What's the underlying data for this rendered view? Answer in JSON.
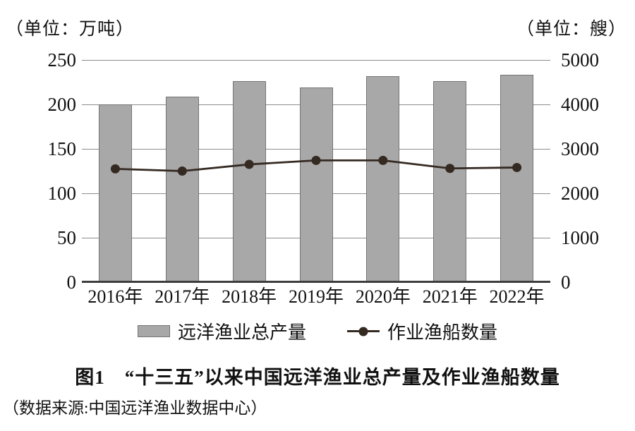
{
  "caption": {
    "text": "图1　“十三五”以来中国远洋渔业总产量及作业渔船数量"
  },
  "source": {
    "text": "（数据来源:中国远洋渔业数据中心）"
  },
  "colors": {
    "bar_fill": "#a8a8a8",
    "bar_border": "#757575",
    "line": "#352a22",
    "grid": "#8c8c8c",
    "axis": "#3d3d3d",
    "text": "#111111",
    "background": "#ffffff"
  },
  "legend": {
    "items": [
      {
        "label": "远洋渔业总产量",
        "marker": "gray-bar-swatch"
      },
      {
        "label": "作业渔船数量",
        "marker": "line-with-dot"
      }
    ],
    "position": "bottom-center"
  },
  "chart_data": {
    "type": "bar+line combo",
    "categories": [
      "2016年",
      "2017年",
      "2018年",
      "2019年",
      "2020年",
      "2021年",
      "2022年"
    ],
    "series": [
      {
        "name": "远洋渔业总产量",
        "type": "bar",
        "axis": "left",
        "values": [
          200,
          209,
          226,
          219,
          232,
          226,
          233
        ]
      },
      {
        "name": "作业渔船数量",
        "type": "line",
        "axis": "right",
        "values": [
          2550,
          2500,
          2650,
          2740,
          2740,
          2560,
          2580
        ]
      }
    ],
    "left_axis": {
      "label": "（单位：万吨）",
      "min": 0,
      "max": 250,
      "step": 50,
      "ticks": [
        0,
        50,
        100,
        150,
        200,
        250
      ]
    },
    "right_axis": {
      "label": "（单位：艘）",
      "min": 0,
      "max": 5000,
      "step": 1000,
      "ticks": [
        0,
        1000,
        2000,
        3000,
        4000,
        5000
      ]
    },
    "grid": true,
    "legend_position": "bottom"
  }
}
